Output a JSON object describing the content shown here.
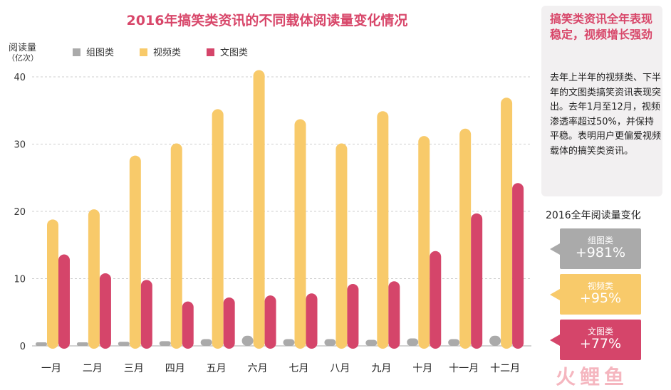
{
  "chart_data": {
    "type": "bar",
    "title": "2016年搞笑类资讯的不同载体阅读量变化情况",
    "ylabel": "阅读量",
    "yunit": "（亿次）",
    "ylim": [
      0,
      40
    ],
    "yticks": [
      0,
      10,
      20,
      30,
      40
    ],
    "grid": true,
    "legend_position": "top-left",
    "categories": [
      "一月",
      "二月",
      "三月",
      "四月",
      "五月",
      "六月",
      "七月",
      "八月",
      "九月",
      "十月",
      "十一月",
      "十二月"
    ],
    "series": [
      {
        "name": "组图类",
        "color": "#aaaaaa",
        "values": [
          0.1,
          0.1,
          0.5,
          0.6,
          0.9,
          1.4,
          0.9,
          0.9,
          0.8,
          1.0,
          0.9,
          1.4
        ]
      },
      {
        "name": "视频类",
        "color": "#f8ca6a",
        "values": [
          18.8,
          20.3,
          28.3,
          30.1,
          35.2,
          41.0,
          33.7,
          30.1,
          34.9,
          31.2,
          32.3,
          36.9
        ]
      },
      {
        "name": "文图类",
        "color": "#d5456a",
        "values": [
          13.6,
          10.8,
          9.8,
          6.6,
          7.2,
          7.5,
          7.8,
          9.2,
          9.6,
          14.1,
          19.7,
          24.2
        ]
      }
    ]
  },
  "panel": {
    "headline": "搞笑类资讯全年表现稳定，视频增长强劲",
    "body": "去年上半年的视频类、下半年的文图类搞笑资讯表现突出。去年1月至12月，视频渗透率超过50%，并保持平稳。表明用户更偏爱视频载体的搞笑类资讯。"
  },
  "summary": {
    "title": "2016全年阅读量变化",
    "items": [
      {
        "name": "组图类",
        "change": "+981%",
        "color": "#aaaaaa"
      },
      {
        "name": "视频类",
        "change": "+95%",
        "color": "#f8ca6a"
      },
      {
        "name": "文图类",
        "change": "+77%",
        "color": "#d5456a"
      }
    ]
  },
  "watermark": "火鲤鱼"
}
